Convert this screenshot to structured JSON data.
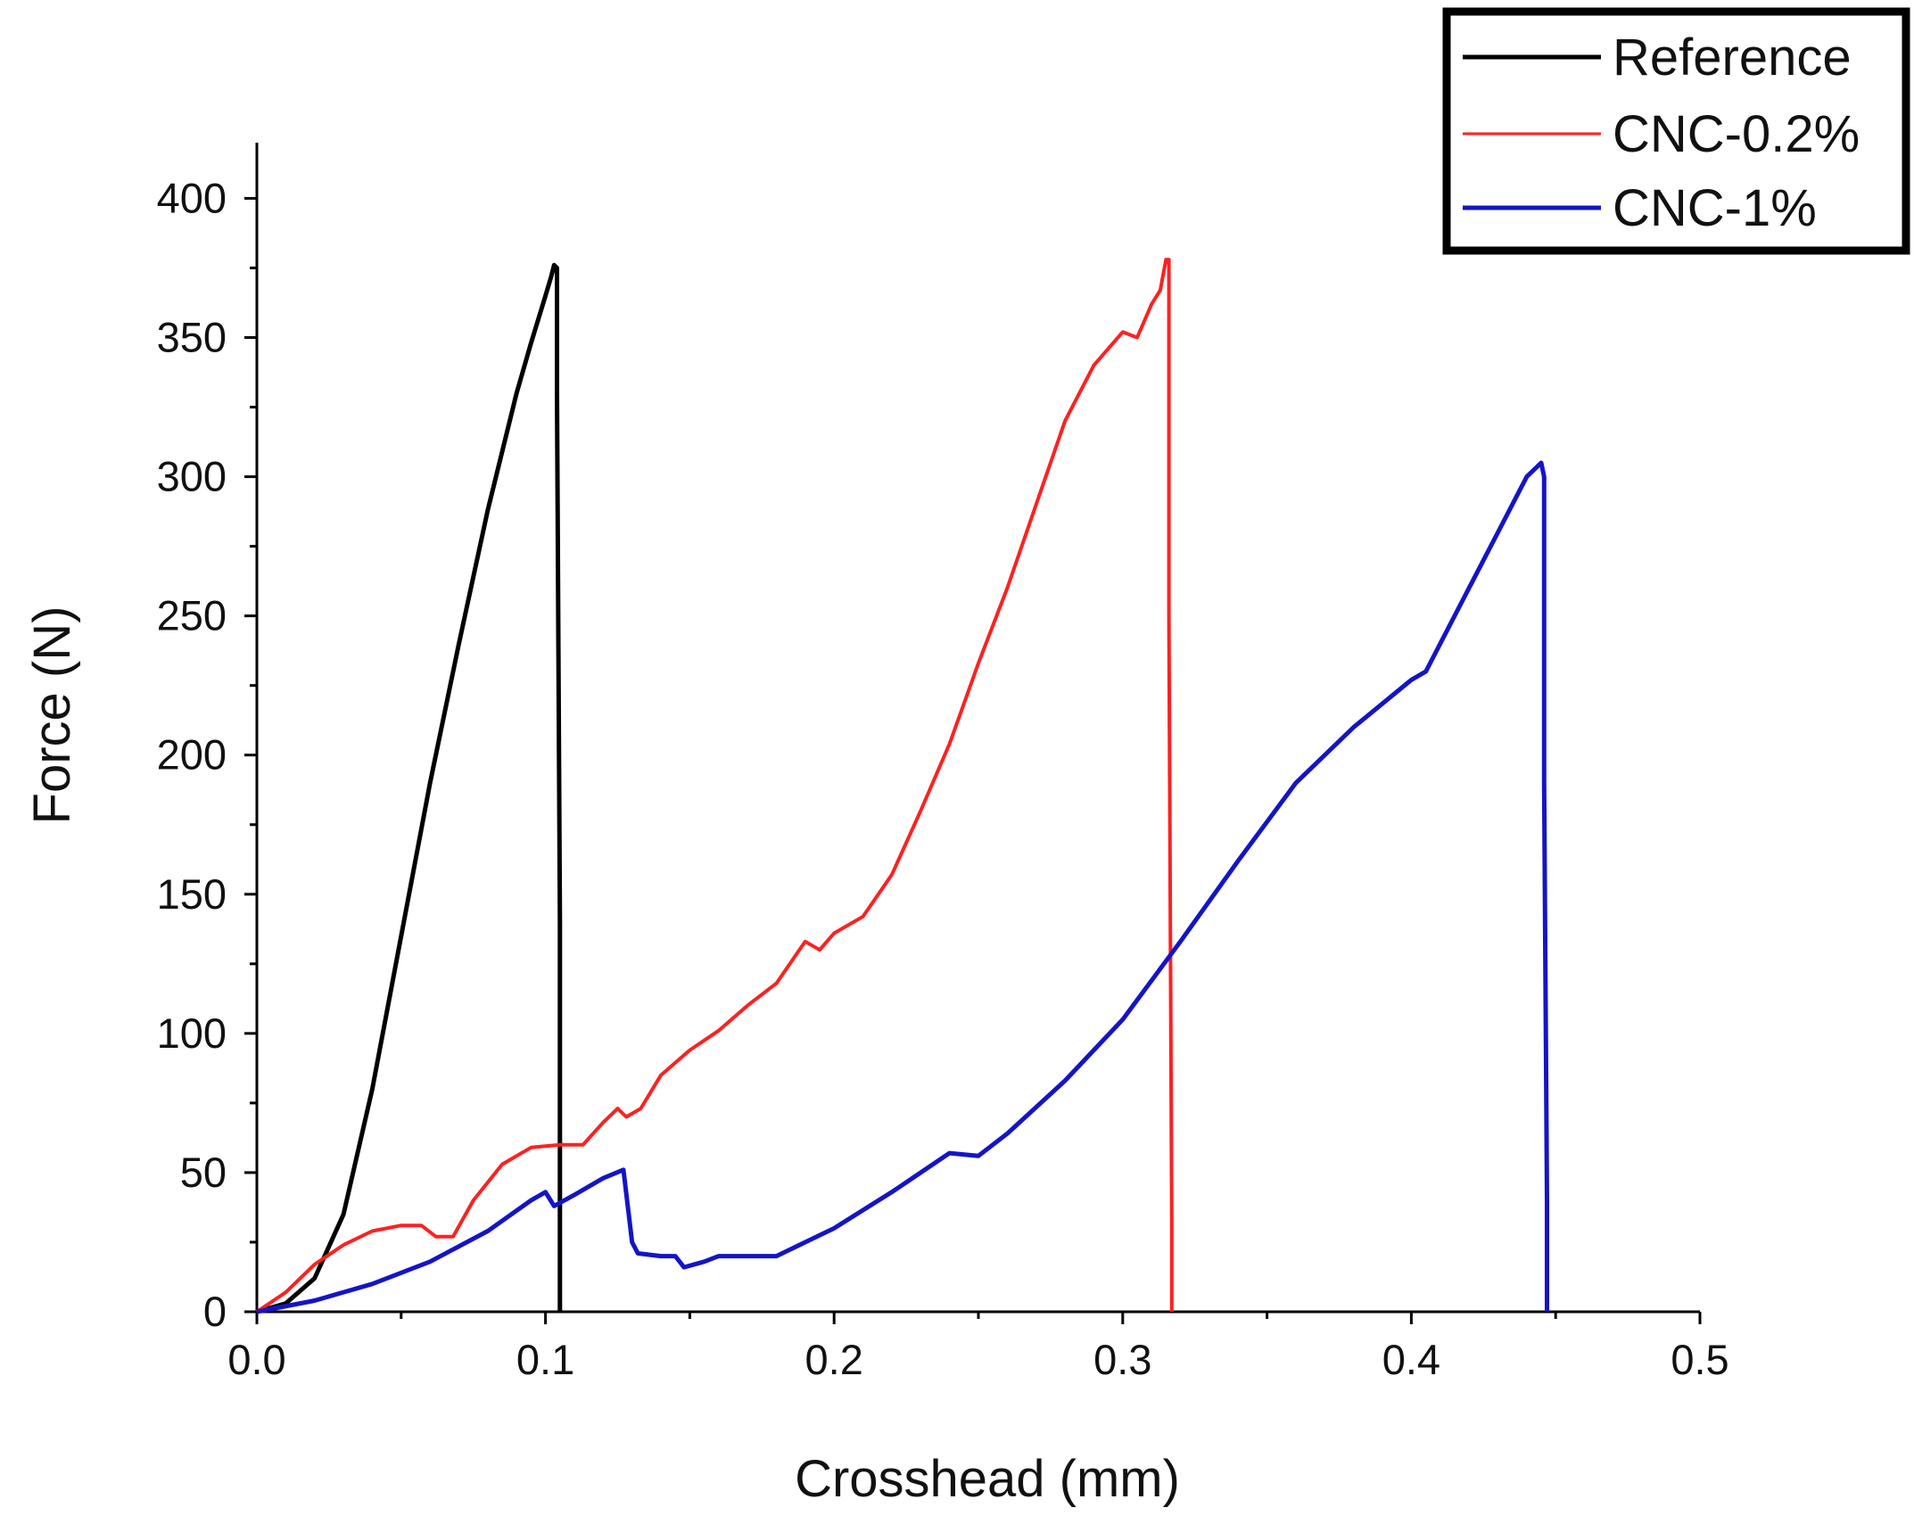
{
  "chart_data": {
    "type": "line",
    "title": "",
    "xlabel": "Crosshead (mm)",
    "ylabel": "Force (N)",
    "xlim": [
      0,
      0.5
    ],
    "ylim": [
      0,
      420
    ],
    "x_ticks": [
      0.0,
      0.1,
      0.2,
      0.3,
      0.4,
      0.5
    ],
    "x_tick_labels": [
      "0.0",
      "0.1",
      "0.2",
      "0.3",
      "0.4",
      "0.5"
    ],
    "y_ticks": [
      0,
      50,
      100,
      150,
      200,
      250,
      300,
      350,
      400
    ],
    "y_tick_labels": [
      "0",
      "50",
      "100",
      "150",
      "200",
      "250",
      "300",
      "350",
      "400"
    ],
    "grid": false,
    "legend_position": "top-right",
    "series": [
      {
        "name": "Reference",
        "color": "#000000",
        "x": [
          0.0,
          0.01,
          0.02,
          0.03,
          0.04,
          0.05,
          0.06,
          0.07,
          0.08,
          0.09,
          0.095,
          0.1,
          0.102,
          0.103,
          0.104,
          0.104,
          0.105,
          0.105,
          0.105
        ],
        "y": [
          0,
          3,
          12,
          35,
          80,
          135,
          190,
          240,
          288,
          330,
          348,
          365,
          372,
          376,
          375,
          330,
          140,
          20,
          0
        ]
      },
      {
        "name": "CNC-0.2%",
        "color": "#ff2020",
        "x": [
          0.0,
          0.01,
          0.02,
          0.03,
          0.04,
          0.05,
          0.057,
          0.062,
          0.068,
          0.075,
          0.085,
          0.095,
          0.105,
          0.113,
          0.12,
          0.125,
          0.128,
          0.133,
          0.14,
          0.15,
          0.16,
          0.17,
          0.18,
          0.19,
          0.195,
          0.2,
          0.21,
          0.22,
          0.23,
          0.24,
          0.25,
          0.26,
          0.27,
          0.28,
          0.29,
          0.3,
          0.305,
          0.31,
          0.313,
          0.315,
          0.316,
          0.316,
          0.317,
          0.317
        ],
        "y": [
          0,
          7,
          17,
          24,
          29,
          31,
          31,
          27,
          27,
          40,
          53,
          59,
          60,
          60,
          68,
          73,
          70,
          73,
          85,
          94,
          101,
          110,
          118,
          133,
          130,
          136,
          142,
          157,
          180,
          204,
          233,
          260,
          290,
          320,
          340,
          352,
          350,
          362,
          367,
          378,
          378,
          250,
          30,
          0
        ]
      },
      {
        "name": "CNC-1%",
        "color": "#1414c8",
        "x": [
          0.0,
          0.02,
          0.04,
          0.06,
          0.08,
          0.095,
          0.1,
          0.103,
          0.11,
          0.12,
          0.127,
          0.13,
          0.132,
          0.14,
          0.145,
          0.148,
          0.155,
          0.16,
          0.17,
          0.18,
          0.2,
          0.22,
          0.24,
          0.25,
          0.26,
          0.28,
          0.3,
          0.32,
          0.34,
          0.36,
          0.38,
          0.4,
          0.405,
          0.42,
          0.43,
          0.44,
          0.445,
          0.446,
          0.446,
          0.447,
          0.447
        ],
        "y": [
          0,
          4,
          10,
          18,
          29,
          40,
          43,
          38,
          42,
          48,
          51,
          25,
          21,
          20,
          20,
          16,
          18,
          20,
          20,
          20,
          30,
          43,
          57,
          56,
          64,
          83,
          105,
          133,
          162,
          190,
          210,
          227,
          230,
          260,
          280,
          300,
          305,
          300,
          190,
          40,
          0
        ]
      }
    ]
  }
}
